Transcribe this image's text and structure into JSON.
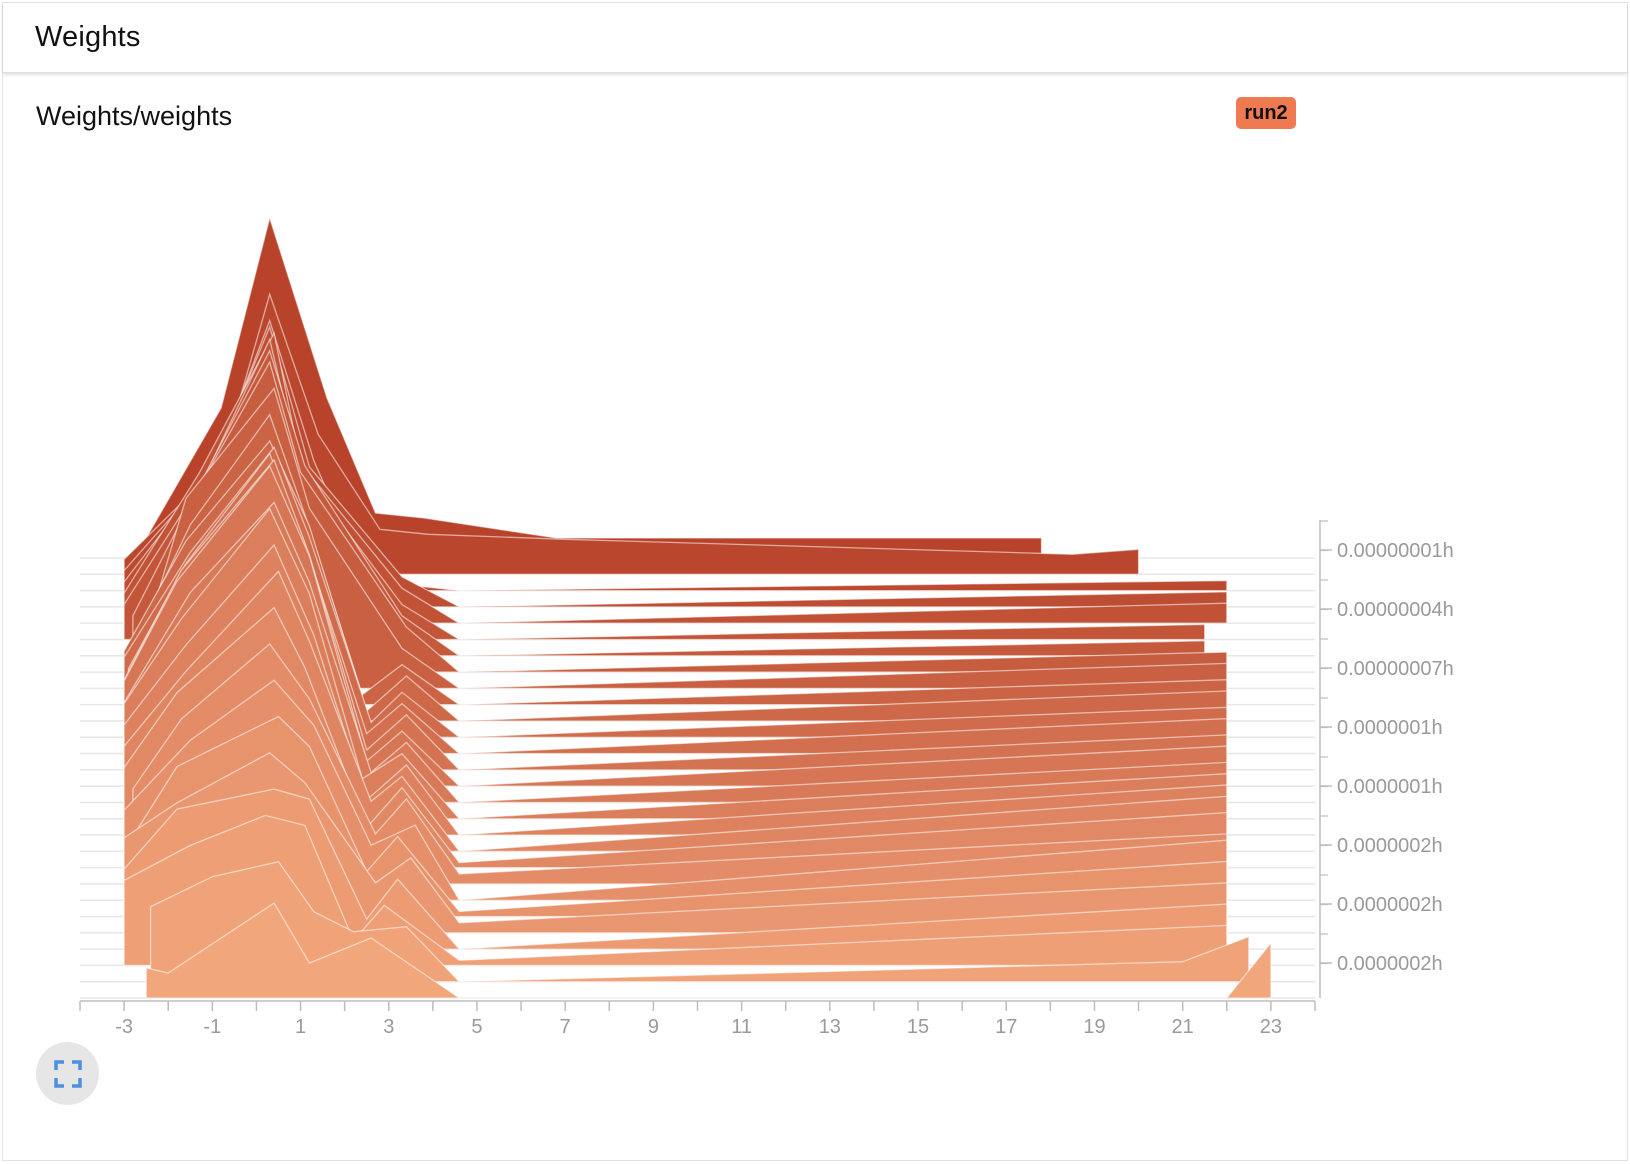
{
  "card": {
    "title": "Weights"
  },
  "plot": {
    "title": "Weights/weights",
    "run_label": "run2",
    "run_color": "#ef7a52"
  },
  "chart_data": {
    "type": "histogram-ridgeline",
    "title": "Weights/weights",
    "series_name": "run2",
    "xlim": [
      -4,
      24
    ],
    "x_ticks": [
      -3,
      -1,
      1,
      3,
      5,
      7,
      9,
      11,
      13,
      15,
      17,
      19,
      21,
      23
    ],
    "y_tick_labels": [
      "0.00000001h",
      "0.00000004h",
      "0.00000007h",
      "0.0000001h",
      "0.0000001h",
      "0.0000002h",
      "0.0000002h",
      "0.0000002h"
    ],
    "color_newest": "#f2a67c",
    "color_oldest": "#b8432a",
    "slices": [
      {
        "bins": [
          [
            -2.5,
            30
          ],
          [
            -2,
            25
          ],
          [
            0.4,
            95
          ],
          [
            1.2,
            35
          ],
          [
            2.6,
            60
          ],
          [
            4.6,
            0
          ],
          [
            22,
            0
          ],
          [
            23,
            55
          ]
        ]
      },
      {
        "bins": [
          [
            -2.4,
            75
          ],
          [
            -1,
            105
          ],
          [
            0.5,
            120
          ],
          [
            1.3,
            70
          ],
          [
            2.2,
            50
          ],
          [
            3.4,
            55
          ],
          [
            4.6,
            0
          ],
          [
            21,
            20
          ],
          [
            22.5,
            45
          ]
        ]
      },
      {
        "bins": [
          [
            -3,
            85
          ],
          [
            -1.5,
            120
          ],
          [
            0.2,
            150
          ],
          [
            1.1,
            140
          ],
          [
            2.2,
            25
          ],
          [
            2.9,
            60
          ],
          [
            4.6,
            5
          ],
          [
            22,
            40
          ]
        ]
      },
      {
        "bins": [
          [
            -3,
            80
          ],
          [
            -1.8,
            140
          ],
          [
            0.4,
            160
          ],
          [
            1.2,
            150
          ],
          [
            2.5,
            30
          ],
          [
            3.2,
            70
          ],
          [
            4.6,
            0
          ],
          [
            22,
            45
          ]
        ]
      },
      {
        "bins": [
          [
            -3,
            95
          ],
          [
            -1.8,
            130
          ],
          [
            0.3,
            180
          ],
          [
            1.1,
            150
          ],
          [
            2.7,
            50
          ],
          [
            3.5,
            75
          ],
          [
            4.6,
            10
          ],
          [
            22,
            50
          ]
        ]
      },
      {
        "bins": [
          [
            -2.8,
            80
          ],
          [
            -1.8,
            150
          ],
          [
            0.5,
            200
          ],
          [
            1.2,
            170
          ],
          [
            2.5,
            45
          ],
          [
            3.2,
            80
          ],
          [
            4.6,
            5
          ],
          [
            22,
            55
          ]
        ]
      },
      {
        "bins": [
          [
            -3,
            90
          ],
          [
            -1.5,
            160
          ],
          [
            0.4,
            220
          ],
          [
            1.3,
            175
          ],
          [
            2.6,
            55
          ],
          [
            3.6,
            75
          ],
          [
            4.6,
            0
          ],
          [
            22,
            60
          ]
        ]
      },
      {
        "bins": [
          [
            -2.8,
            95
          ],
          [
            -1.7,
            165
          ],
          [
            0.3,
            240
          ],
          [
            1.2,
            185
          ],
          [
            2.7,
            50
          ],
          [
            3.4,
            85
          ],
          [
            4.6,
            10
          ],
          [
            22,
            50
          ]
        ]
      },
      {
        "bins": [
          [
            -3,
            100
          ],
          [
            -1.8,
            175
          ],
          [
            0.4,
            260
          ],
          [
            1.1,
            200
          ],
          [
            2.5,
            40
          ],
          [
            3.3,
            80
          ],
          [
            4.6,
            5
          ],
          [
            22,
            55
          ]
        ]
      },
      {
        "bins": [
          [
            -3,
            105
          ],
          [
            -1.6,
            180
          ],
          [
            0.5,
            280
          ],
          [
            1.2,
            210
          ],
          [
            2.6,
            50
          ],
          [
            3.3,
            75
          ],
          [
            4.6,
            0
          ],
          [
            22,
            55
          ]
        ]
      },
      {
        "bins": [
          [
            -3,
            110
          ],
          [
            -1.6,
            190
          ],
          [
            0.4,
            290
          ],
          [
            1.3,
            200
          ],
          [
            2.5,
            35
          ],
          [
            3.4,
            70
          ],
          [
            4.6,
            0
          ],
          [
            22,
            50
          ]
        ]
      },
      {
        "bins": [
          [
            -3,
            115
          ],
          [
            -1.7,
            200
          ],
          [
            0.3,
            310
          ],
          [
            1.2,
            225
          ],
          [
            2.4,
            40
          ],
          [
            3.3,
            65
          ],
          [
            4.6,
            0
          ],
          [
            22,
            45
          ]
        ]
      },
      {
        "bins": [
          [
            -3,
            100
          ],
          [
            -1.5,
            210
          ],
          [
            0.4,
            300
          ],
          [
            1.2,
            220
          ],
          [
            2.6,
            30
          ],
          [
            3.4,
            60
          ],
          [
            4.6,
            0
          ],
          [
            22,
            40
          ]
        ]
      },
      {
        "bins": [
          [
            -3,
            105
          ],
          [
            -1.8,
            205
          ],
          [
            0.3,
            320
          ],
          [
            1.2,
            230
          ],
          [
            2.5,
            25
          ],
          [
            3.3,
            55
          ],
          [
            4.6,
            0
          ],
          [
            22,
            40
          ]
        ]
      },
      {
        "bins": [
          [
            -3,
            90
          ],
          [
            -1.7,
            200
          ],
          [
            0.4,
            310
          ],
          [
            1.2,
            215
          ],
          [
            2.5,
            20
          ],
          [
            3.4,
            55
          ],
          [
            4.6,
            0
          ],
          [
            22,
            35
          ]
        ]
      },
      {
        "bins": [
          [
            -2.9,
            85
          ],
          [
            -1.6,
            190
          ],
          [
            0.3,
            300
          ],
          [
            1.1,
            210
          ],
          [
            2.5,
            20
          ],
          [
            3.3,
            50
          ],
          [
            4.6,
            0
          ],
          [
            22,
            35
          ]
        ]
      },
      {
        "bins": [
          [
            -3,
            80
          ],
          [
            -1.5,
            185
          ],
          [
            0.4,
            290
          ],
          [
            1.2,
            200
          ],
          [
            2.6,
            15
          ],
          [
            3.3,
            45
          ],
          [
            4.6,
            0
          ],
          [
            22,
            30
          ]
        ]
      },
      {
        "bins": [
          [
            -3,
            70
          ],
          [
            -1.6,
            180
          ],
          [
            0.3,
            280
          ],
          [
            1.2,
            195
          ],
          [
            2.5,
            10
          ],
          [
            3.4,
            45
          ],
          [
            4.6,
            0
          ],
          [
            22,
            30
          ]
        ]
      },
      {
        "bins": [
          [
            -2.8,
            60
          ],
          [
            -1.5,
            180
          ],
          [
            0.3,
            290
          ],
          [
            1.1,
            190
          ],
          [
            2.4,
            10
          ],
          [
            3.3,
            40
          ],
          [
            4.6,
            0
          ],
          [
            22,
            25
          ]
        ]
      },
      {
        "bins": [
          [
            -2.5,
            55
          ],
          [
            -1.6,
            190
          ],
          [
            0.4,
            300
          ],
          [
            1.2,
            180
          ],
          [
            3.3,
            40
          ],
          [
            4.6,
            0
          ],
          [
            22,
            25
          ]
        ]
      },
      {
        "bins": [
          [
            -2.5,
            50
          ],
          [
            -1.3,
            185
          ],
          [
            0.3,
            310
          ],
          [
            1.0,
            200
          ],
          [
            3.4,
            45
          ],
          [
            4.6,
            0
          ],
          [
            22,
            20
          ]
        ]
      },
      {
        "bins": [
          [
            -2.8,
            40
          ],
          [
            -1.3,
            170
          ],
          [
            0.3,
            305
          ],
          [
            1.1,
            190
          ],
          [
            3.3,
            40
          ],
          [
            4.6,
            0
          ],
          [
            21.5,
            15
          ]
        ]
      },
      {
        "bins": [
          [
            -3,
            35
          ],
          [
            -1.2,
            160
          ],
          [
            0.3,
            300
          ],
          [
            1.0,
            170
          ],
          [
            3.3,
            35
          ],
          [
            4.6,
            0
          ],
          [
            21.5,
            15
          ]
        ]
      },
      {
        "bins": [
          [
            -3,
            30
          ],
          [
            -1.3,
            150
          ],
          [
            0.4,
            290
          ],
          [
            1.0,
            160
          ],
          [
            3.3,
            35
          ],
          [
            4.6,
            0
          ],
          [
            22,
            20
          ]
        ]
      },
      {
        "bins": [
          [
            -3,
            25
          ],
          [
            -1.0,
            140
          ],
          [
            0.3,
            280
          ],
          [
            1.2,
            140
          ],
          [
            3.3,
            30
          ],
          [
            4.6,
            0
          ],
          [
            22,
            15
          ]
        ]
      },
      {
        "bins": [
          [
            -3,
            20
          ],
          [
            -1.0,
            120
          ],
          [
            0.3,
            270
          ],
          [
            1.3,
            130
          ],
          [
            2.5,
            10
          ],
          [
            4.6,
            0
          ],
          [
            22,
            10
          ]
        ]
      },
      {
        "bins": [
          [
            -3,
            15
          ],
          [
            -0.8,
            110
          ],
          [
            0.3,
            280
          ],
          [
            1.4,
            140
          ],
          [
            2.8,
            45
          ],
          [
            3.9,
            40
          ],
          [
            7,
            35
          ],
          [
            18.5,
            20
          ],
          [
            20,
            25
          ]
        ]
      },
      {
        "bins": [
          [
            -2.5,
            20
          ],
          [
            -0.8,
            150
          ],
          [
            0.3,
            340
          ],
          [
            1.6,
            160
          ],
          [
            2.7,
            45
          ],
          [
            3.8,
            40
          ],
          [
            6.8,
            20
          ],
          [
            17.8,
            20
          ]
        ]
      }
    ]
  }
}
